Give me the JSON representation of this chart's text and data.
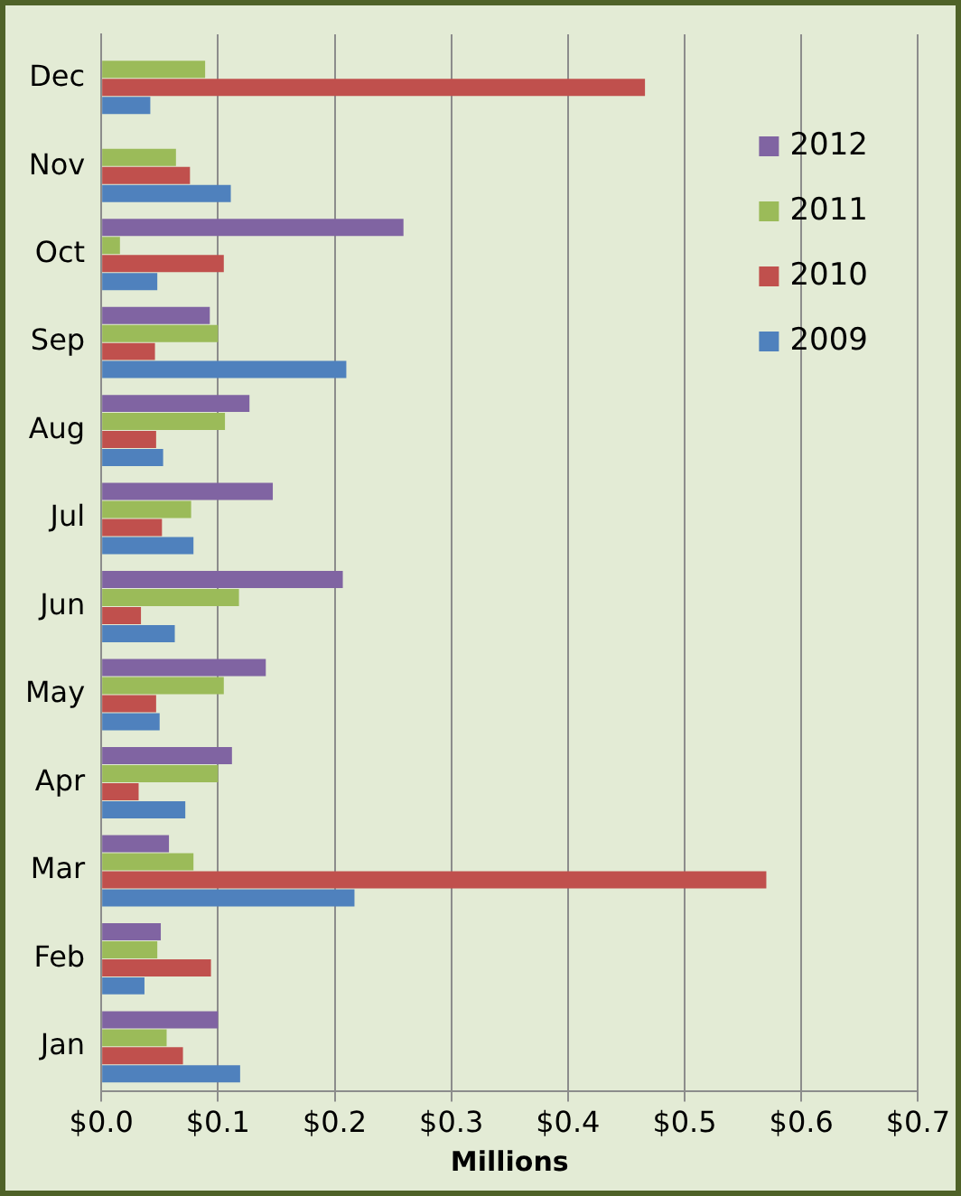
{
  "chart_data": {
    "type": "bar",
    "orientation": "horizontal",
    "xlabel": "Millions",
    "categories": [
      "Dec",
      "Nov",
      "Oct",
      "Sep",
      "Aug",
      "Jul",
      "Jun",
      "May",
      "Apr",
      "Mar",
      "Feb",
      "Jan"
    ],
    "series": [
      {
        "name": "2012",
        "color": "#8064a2",
        "values": [
          null,
          null,
          0.259,
          0.093,
          0.127,
          0.147,
          0.207,
          0.141,
          0.112,
          0.058,
          0.051,
          0.1
        ]
      },
      {
        "name": "2011",
        "color": "#9bbb59",
        "values": [
          0.089,
          0.064,
          0.016,
          0.1,
          0.106,
          0.077,
          0.118,
          0.105,
          0.1,
          0.079,
          0.048,
          0.056
        ]
      },
      {
        "name": "2010",
        "color": "#c0504d",
        "values": [
          0.466,
          0.076,
          0.105,
          0.046,
          0.047,
          0.052,
          0.034,
          0.047,
          0.032,
          0.57,
          0.094,
          0.07
        ]
      },
      {
        "name": "2009",
        "color": "#4f81bd",
        "values": [
          0.042,
          0.111,
          0.048,
          0.21,
          0.053,
          0.079,
          0.063,
          0.05,
          0.072,
          0.217,
          0.037,
          0.119
        ]
      }
    ],
    "xlim": [
      0,
      0.7
    ],
    "xticks": [
      {
        "value": 0,
        "label": "$0.0"
      },
      {
        "value": 0.1,
        "label": "$0.1"
      },
      {
        "value": 0.2,
        "label": "$0.2"
      },
      {
        "value": 0.3,
        "label": "$0.3"
      },
      {
        "value": 0.4,
        "label": "$0.4"
      },
      {
        "value": 0.5,
        "label": "$0.5"
      },
      {
        "value": 0.6,
        "label": "$0.6"
      },
      {
        "value": 0.7,
        "label": "$0.7"
      }
    ],
    "grid": "x",
    "legend": "top right"
  }
}
